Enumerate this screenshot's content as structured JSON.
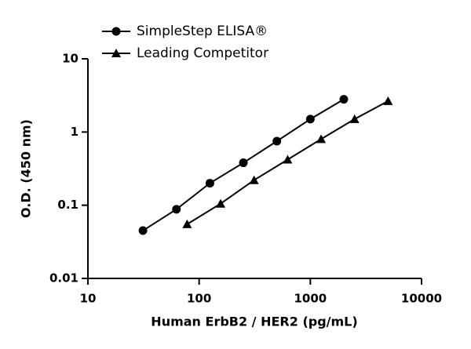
{
  "chart_data": {
    "type": "line",
    "xlabel": "Human ErbB2 / HER2 (pg/mL)",
    "ylabel": "O.D. (450 nm)",
    "xscale": "log",
    "yscale": "log",
    "xlim": [
      10,
      10000
    ],
    "xticks": [
      10,
      100,
      1000,
      10000
    ],
    "ylim": [
      0.01,
      10
    ],
    "yticks": [
      0.01,
      0.1,
      1,
      10
    ],
    "legend": "top-left",
    "series": [
      {
        "name": "SimpleStep ELISA®",
        "color": "#000000",
        "marker": "circle",
        "x": [
          31.25,
          62.5,
          125,
          250,
          500,
          1000,
          2000
        ],
        "values": [
          0.045,
          0.088,
          0.2,
          0.38,
          0.75,
          1.5,
          2.8
        ]
      },
      {
        "name": "Leading Competitor",
        "color": "#000000",
        "marker": "triangle",
        "x": [
          78,
          156,
          312,
          625,
          1250,
          2500,
          5000
        ],
        "values": [
          0.055,
          0.105,
          0.22,
          0.42,
          0.8,
          1.5,
          2.65
        ]
      }
    ]
  }
}
